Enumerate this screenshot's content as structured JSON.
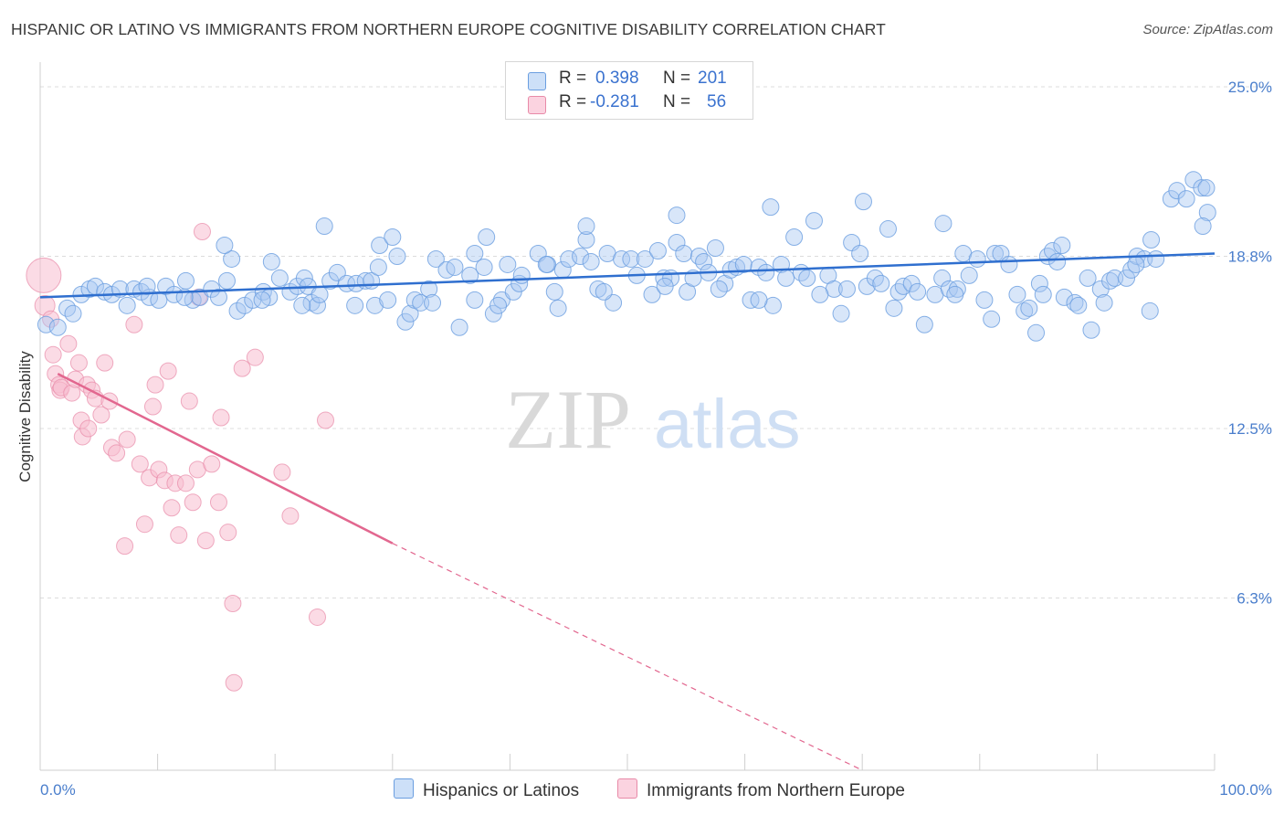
{
  "title": "HISPANIC OR LATINO VS IMMIGRANTS FROM NORTHERN EUROPE COGNITIVE DISABILITY CORRELATION CHART",
  "source": "Source: ZipAtlas.com",
  "watermark": {
    "zip": "ZIP",
    "atlas": "atlas"
  },
  "legend": {
    "rows": [
      {
        "r_label": "R =",
        "r_value": "0.398",
        "n_label": "N =",
        "n_value": "201",
        "color": "#a9c8f2",
        "border": "#6a9ee0"
      },
      {
        "r_label": "R =",
        "r_value": "-0.281",
        "n_label": "N =",
        "n_value": "56",
        "color": "#f7bdd0",
        "border": "#e88aa8"
      }
    ]
  },
  "bottom_legend": [
    {
      "label": "Hispanics or Latinos",
      "color": "#a9c8f2",
      "border": "#6a9ee0"
    },
    {
      "label": "Immigrants from Northern Europe",
      "color": "#f7bdd0",
      "border": "#e88aa8"
    }
  ],
  "chart_data": {
    "type": "scatter",
    "title": "HISPANIC OR LATINO VS IMMIGRANTS FROM NORTHERN EUROPE COGNITIVE DISABILITY CORRELATION CHART",
    "ylabel": "Cognitive Disability",
    "xlabel": "",
    "xlim": [
      0,
      100
    ],
    "ylim": [
      0,
      25.5
    ],
    "x_tick_labels": [
      "0.0%",
      "100.0%"
    ],
    "y_ticks": [
      6.3,
      12.5,
      18.8,
      25.0
    ],
    "y_tick_labels": [
      "6.3%",
      "12.5%",
      "18.8%",
      "25.0%"
    ],
    "grid": "horizontal dashed",
    "colors": {
      "blue": "#6a9ee0",
      "blue_fill": "#a9c8f2",
      "pink": "#e88aa8",
      "pink_fill": "#f7bdd0",
      "blue_line": "#2f6fcf",
      "pink_line": "#e2678f"
    },
    "series": [
      {
        "name": "Hispanics or Latinos",
        "trend": {
          "x": [
            0,
            100
          ],
          "y": [
            17.3,
            18.9
          ]
        },
        "points": [
          [
            0.5,
            16.3
          ],
          [
            1.5,
            16.2
          ],
          [
            2.3,
            16.9
          ],
          [
            2.8,
            16.7
          ],
          [
            3.5,
            17.4
          ],
          [
            4.2,
            17.6
          ],
          [
            4.7,
            17.7
          ],
          [
            5.5,
            17.5
          ],
          [
            6.1,
            17.4
          ],
          [
            6.8,
            17.6
          ],
          [
            7.4,
            17.0
          ],
          [
            8.0,
            17.6
          ],
          [
            8.6,
            17.5
          ],
          [
            9.3,
            17.3
          ],
          [
            10.1,
            17.2
          ],
          [
            10.7,
            17.7
          ],
          [
            11.4,
            17.4
          ],
          [
            12.4,
            17.9
          ],
          [
            13.0,
            17.2
          ],
          [
            13.6,
            17.3
          ],
          [
            14.6,
            17.6
          ],
          [
            15.2,
            17.3
          ],
          [
            15.9,
            17.9
          ],
          [
            16.3,
            18.7
          ],
          [
            16.8,
            16.8
          ],
          [
            17.4,
            17.0
          ],
          [
            18.1,
            17.2
          ],
          [
            19.0,
            17.5
          ],
          [
            19.5,
            17.3
          ],
          [
            19.7,
            18.6
          ],
          [
            20.4,
            18.0
          ],
          [
            21.3,
            17.5
          ],
          [
            21.9,
            17.7
          ],
          [
            22.5,
            18.0
          ],
          [
            22.8,
            17.7
          ],
          [
            23.1,
            17.1
          ],
          [
            23.6,
            17.0
          ],
          [
            23.8,
            17.4
          ],
          [
            24.7,
            17.9
          ],
          [
            25.3,
            18.2
          ],
          [
            26.1,
            17.8
          ],
          [
            26.9,
            17.8
          ],
          [
            27.7,
            17.9
          ],
          [
            28.2,
            17.9
          ],
          [
            28.5,
            17.0
          ],
          [
            28.8,
            18.4
          ],
          [
            28.9,
            19.2
          ],
          [
            29.6,
            17.2
          ],
          [
            30.4,
            18.8
          ],
          [
            31.1,
            16.4
          ],
          [
            31.5,
            16.7
          ],
          [
            31.9,
            17.2
          ],
          [
            32.4,
            17.1
          ],
          [
            33.1,
            17.6
          ],
          [
            33.7,
            18.7
          ],
          [
            34.6,
            18.3
          ],
          [
            35.3,
            18.4
          ],
          [
            35.7,
            16.2
          ],
          [
            36.6,
            18.1
          ],
          [
            37.0,
            17.2
          ],
          [
            37.8,
            18.4
          ],
          [
            38.0,
            19.5
          ],
          [
            38.6,
            16.7
          ],
          [
            39.3,
            17.2
          ],
          [
            39.8,
            18.5
          ],
          [
            40.3,
            17.5
          ],
          [
            40.8,
            17.8
          ],
          [
            41.0,
            18.1
          ],
          [
            42.4,
            18.9
          ],
          [
            43.2,
            18.5
          ],
          [
            43.8,
            17.5
          ],
          [
            44.5,
            18.3
          ],
          [
            45.0,
            18.7
          ],
          [
            46.0,
            18.8
          ],
          [
            46.5,
            19.4
          ],
          [
            46.9,
            18.6
          ],
          [
            47.5,
            17.6
          ],
          [
            48.3,
            18.9
          ],
          [
            48.8,
            17.1
          ],
          [
            49.5,
            18.7
          ],
          [
            50.3,
            18.7
          ],
          [
            50.8,
            18.1
          ],
          [
            51.5,
            18.7
          ],
          [
            52.1,
            17.4
          ],
          [
            52.6,
            19.0
          ],
          [
            53.1,
            18.0
          ],
          [
            53.7,
            18.0
          ],
          [
            54.2,
            19.3
          ],
          [
            54.8,
            18.9
          ],
          [
            55.1,
            17.5
          ],
          [
            55.6,
            18.0
          ],
          [
            56.1,
            18.8
          ],
          [
            56.5,
            18.6
          ],
          [
            56.9,
            18.2
          ],
          [
            57.5,
            19.1
          ],
          [
            58.3,
            17.8
          ],
          [
            58.8,
            18.3
          ],
          [
            59.3,
            18.4
          ],
          [
            59.9,
            18.5
          ],
          [
            60.5,
            17.2
          ],
          [
            61.2,
            18.4
          ],
          [
            61.8,
            18.2
          ],
          [
            62.4,
            17.0
          ],
          [
            63.1,
            18.5
          ],
          [
            63.5,
            18.0
          ],
          [
            64.2,
            19.5
          ],
          [
            64.8,
            18.2
          ],
          [
            65.3,
            18.0
          ],
          [
            65.9,
            20.1
          ],
          [
            67.1,
            18.1
          ],
          [
            67.6,
            17.6
          ],
          [
            68.2,
            16.7
          ],
          [
            68.7,
            17.6
          ],
          [
            69.1,
            19.3
          ],
          [
            69.8,
            18.9
          ],
          [
            70.4,
            17.7
          ],
          [
            71.1,
            18.0
          ],
          [
            71.6,
            17.8
          ],
          [
            72.2,
            19.8
          ],
          [
            73.1,
            17.5
          ],
          [
            73.5,
            17.7
          ],
          [
            74.2,
            17.8
          ],
          [
            74.7,
            17.5
          ],
          [
            75.3,
            16.3
          ],
          [
            76.2,
            17.4
          ],
          [
            76.8,
            18.0
          ],
          [
            77.4,
            17.6
          ],
          [
            78.1,
            17.6
          ],
          [
            78.6,
            18.9
          ],
          [
            79.1,
            18.1
          ],
          [
            79.8,
            18.7
          ],
          [
            80.4,
            17.2
          ],
          [
            81.0,
            16.5
          ],
          [
            81.3,
            18.9
          ],
          [
            81.8,
            18.9
          ],
          [
            82.5,
            18.5
          ],
          [
            83.2,
            17.4
          ],
          [
            83.8,
            16.8
          ],
          [
            84.2,
            16.9
          ],
          [
            84.8,
            16.0
          ],
          [
            85.1,
            17.8
          ],
          [
            85.8,
            18.8
          ],
          [
            86.2,
            19.0
          ],
          [
            86.6,
            18.6
          ],
          [
            87.2,
            17.3
          ],
          [
            88.1,
            17.1
          ],
          [
            88.4,
            17.0
          ],
          [
            89.2,
            18.0
          ],
          [
            89.5,
            16.1
          ],
          [
            90.3,
            17.6
          ],
          [
            91.1,
            17.9
          ],
          [
            91.5,
            18.0
          ],
          [
            92.5,
            18.0
          ],
          [
            92.9,
            18.3
          ],
          [
            93.4,
            18.8
          ],
          [
            94.0,
            18.7
          ],
          [
            94.6,
            19.4
          ],
          [
            94.5,
            16.8
          ],
          [
            95.0,
            18.7
          ],
          [
            96.3,
            20.9
          ],
          [
            96.8,
            21.2
          ],
          [
            97.6,
            20.9
          ],
          [
            98.2,
            21.6
          ],
          [
            98.9,
            21.3
          ],
          [
            99.3,
            21.3
          ],
          [
            99.4,
            20.4
          ],
          [
            99.0,
            19.9
          ],
          [
            87.0,
            19.2
          ],
          [
            76.9,
            20.0
          ],
          [
            70.1,
            20.8
          ],
          [
            62.2,
            20.6
          ],
          [
            54.2,
            20.3
          ],
          [
            46.5,
            19.9
          ],
          [
            43.1,
            18.5
          ],
          [
            37.0,
            18.9
          ],
          [
            30.0,
            19.5
          ],
          [
            24.2,
            19.9
          ],
          [
            15.7,
            19.2
          ],
          [
            9.1,
            17.7
          ],
          [
            12.3,
            17.3
          ],
          [
            18.9,
            17.2
          ],
          [
            22.3,
            17.0
          ],
          [
            26.8,
            17.0
          ],
          [
            33.4,
            17.1
          ],
          [
            39.0,
            17.0
          ],
          [
            44.1,
            16.9
          ],
          [
            48.0,
            17.5
          ],
          [
            53.2,
            17.7
          ],
          [
            57.8,
            17.6
          ],
          [
            61.2,
            17.2
          ],
          [
            66.4,
            17.4
          ],
          [
            72.7,
            16.9
          ],
          [
            77.9,
            17.4
          ],
          [
            85.4,
            17.4
          ],
          [
            90.6,
            17.1
          ],
          [
            93.3,
            18.5
          ]
        ]
      },
      {
        "name": "Immigrants from Northern Europe",
        "trend": {
          "x": [
            1.5,
            30
          ],
          "y": [
            14.5,
            8.3
          ]
        },
        "trend_dashed": {
          "x": [
            30,
            70
          ],
          "y": [
            8.3,
            0
          ]
        },
        "points": [
          [
            0.3,
            18.1
          ],
          [
            0.4,
            17.0
          ],
          [
            0.9,
            16.5
          ],
          [
            1.1,
            15.2
          ],
          [
            1.3,
            14.5
          ],
          [
            1.6,
            14.1
          ],
          [
            1.7,
            13.9
          ],
          [
            1.8,
            14.0
          ],
          [
            2.4,
            15.6
          ],
          [
            2.7,
            13.8
          ],
          [
            3.0,
            14.3
          ],
          [
            3.3,
            14.9
          ],
          [
            3.5,
            12.8
          ],
          [
            3.6,
            12.2
          ],
          [
            4.0,
            14.1
          ],
          [
            4.1,
            12.5
          ],
          [
            4.4,
            13.9
          ],
          [
            4.7,
            13.6
          ],
          [
            5.2,
            13.0
          ],
          [
            5.5,
            14.9
          ],
          [
            5.9,
            13.5
          ],
          [
            6.1,
            11.8
          ],
          [
            6.5,
            11.6
          ],
          [
            7.2,
            8.2
          ],
          [
            7.4,
            12.1
          ],
          [
            8.0,
            16.3
          ],
          [
            8.5,
            11.2
          ],
          [
            8.9,
            9.0
          ],
          [
            9.3,
            10.7
          ],
          [
            9.6,
            13.3
          ],
          [
            9.8,
            14.1
          ],
          [
            10.1,
            11.0
          ],
          [
            10.6,
            10.6
          ],
          [
            10.9,
            14.6
          ],
          [
            11.2,
            9.6
          ],
          [
            11.5,
            10.5
          ],
          [
            11.8,
            8.6
          ],
          [
            12.4,
            10.5
          ],
          [
            12.7,
            13.5
          ],
          [
            13.0,
            9.8
          ],
          [
            13.4,
            11.0
          ],
          [
            13.5,
            17.3
          ],
          [
            13.8,
            19.7
          ],
          [
            14.1,
            8.4
          ],
          [
            14.6,
            11.2
          ],
          [
            15.2,
            9.8
          ],
          [
            15.4,
            12.9
          ],
          [
            16.0,
            8.7
          ],
          [
            16.4,
            6.1
          ],
          [
            16.5,
            3.2
          ],
          [
            17.2,
            14.7
          ],
          [
            18.3,
            15.1
          ],
          [
            20.6,
            10.9
          ],
          [
            21.3,
            9.3
          ],
          [
            23.6,
            5.6
          ],
          [
            24.3,
            12.8
          ]
        ]
      }
    ]
  }
}
